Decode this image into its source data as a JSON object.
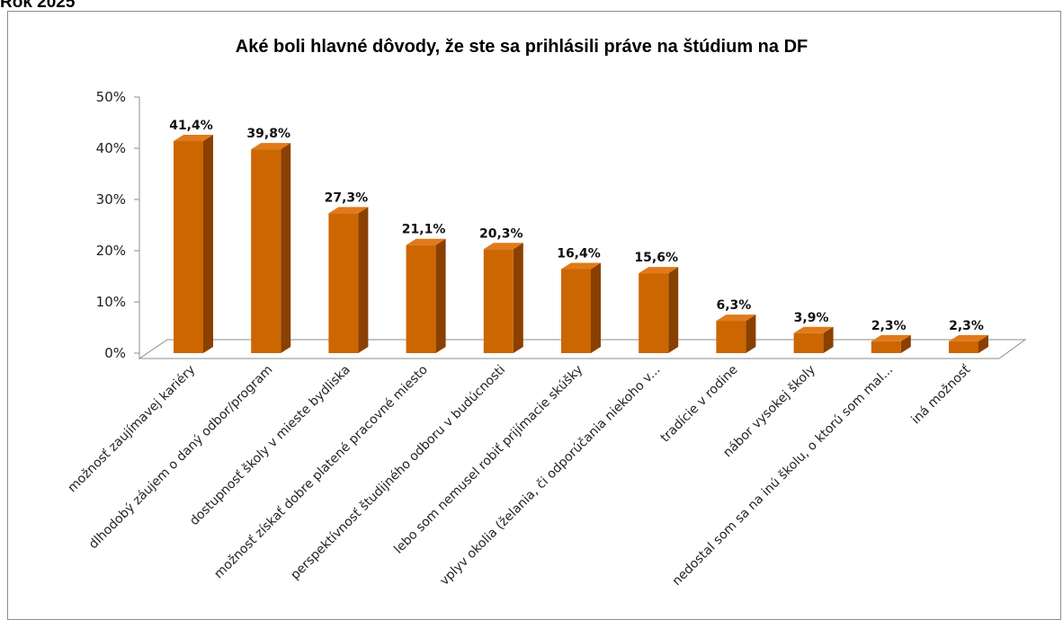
{
  "header": {
    "label": "Rok 2025"
  },
  "chart_data": {
    "type": "bar",
    "title": "Aké boli hlavné dôvody, že ste sa prihlásili práve na štúdium na DF",
    "xlabel": "",
    "ylabel": "",
    "ylim": [
      0,
      50
    ],
    "y_ticks": [
      "0%",
      "10%",
      "20%",
      "30%",
      "40%",
      "50%"
    ],
    "grid": false,
    "legend": "none",
    "categories": [
      "možnosť zaujímavej kariéry",
      "dlhodobý záujem o daný odbor/program",
      "dostupnosť školy v mieste bydliska",
      "možnosť získať dobre platené pracovné miesto",
      "perspektívnosť študijného odboru v budúcnosti",
      "lebo som nemusel robiť prijímacie skúšky",
      "vplyv okolia (želania, či odporúčania niekoho v...",
      "tradície v rodine",
      "nábor vysokej školy",
      "nedostal som sa na inú školu, o ktorú som mal...",
      "iná možnosť"
    ],
    "values": [
      41.4,
      39.8,
      27.3,
      21.1,
      20.3,
      16.4,
      15.6,
      6.3,
      3.9,
      2.3,
      2.3
    ],
    "value_labels": [
      "41,4%",
      "39,8%",
      "27,3%",
      "21,1%",
      "20,3%",
      "16,4%",
      "15,6%",
      "6,3%",
      "3,9%",
      "2,3%",
      "2,3%"
    ],
    "colors": {
      "bar_front": "#CC6600",
      "bar_top": "#E07A1A",
      "bar_side": "#8A4000",
      "floor": "#ffffff",
      "floor_edge": "#8c8c8c"
    }
  }
}
